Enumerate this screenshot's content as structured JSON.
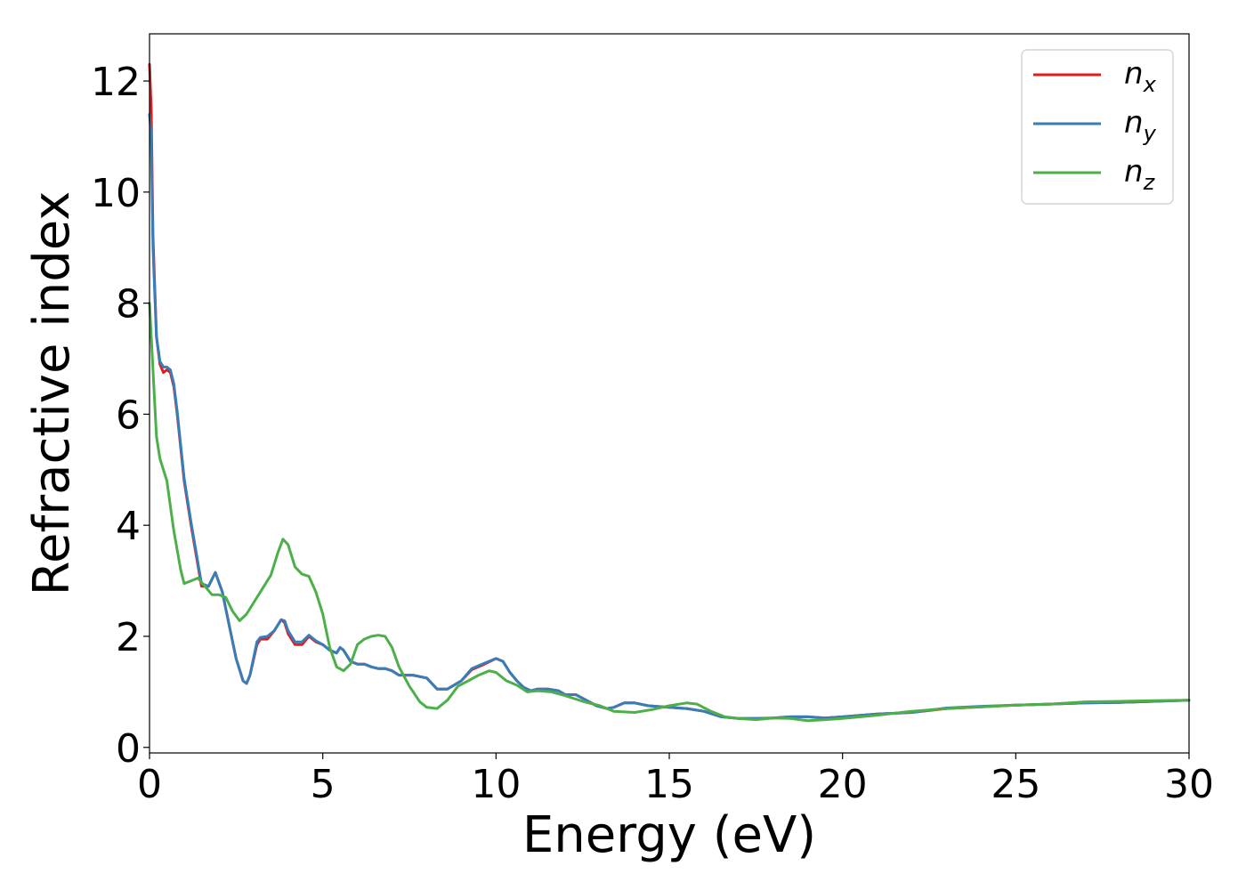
{
  "chart_data": {
    "type": "line",
    "title": "",
    "xlabel": "Energy (eV)",
    "ylabel": "Refractive index",
    "xlim": [
      0,
      30
    ],
    "ylim": [
      -0.1,
      12.85
    ],
    "xticks": [
      0,
      5,
      10,
      15,
      20,
      25,
      30
    ],
    "yticks": [
      0,
      2,
      4,
      6,
      8,
      10,
      12
    ],
    "grid": false,
    "legend_position": "top-right",
    "series": [
      {
        "base": "n",
        "sub": "x",
        "color": "#e41a1c",
        "x": [
          0,
          0.05,
          0.1,
          0.2,
          0.3,
          0.4,
          0.5,
          0.6,
          0.7,
          0.8,
          1.0,
          1.2,
          1.5,
          1.7,
          1.9,
          2.1,
          2.3,
          2.5,
          2.7,
          2.8,
          2.9,
          3.1,
          3.2,
          3.4,
          3.6,
          3.8,
          3.9,
          4.0,
          4.2,
          4.4,
          4.6,
          4.8,
          5.0,
          5.2,
          5.4,
          5.5,
          5.6,
          5.8,
          6.0,
          6.2,
          6.4,
          6.6,
          6.8,
          7.0,
          7.2,
          7.6,
          8.0,
          8.3,
          8.6,
          9.0,
          9.3,
          9.6,
          10.0,
          10.2,
          10.4,
          10.6,
          10.8,
          11.0,
          11.2,
          11.5,
          11.8,
          12.0,
          12.3,
          12.6,
          12.9,
          13.2,
          13.4,
          13.7,
          14.0,
          14.4,
          15.0,
          15.5,
          16.0,
          16.5,
          17.0,
          17.5,
          18.0,
          18.5,
          19.0,
          19.5,
          20.0,
          21.0,
          22.0,
          23.0,
          24.0,
          25.0,
          26.0,
          27.0,
          28.0,
          29.0,
          30.0
        ],
        "y": [
          12.3,
          11.5,
          9.2,
          7.4,
          6.9,
          6.75,
          6.8,
          6.75,
          6.5,
          6.0,
          4.8,
          4.0,
          2.9,
          2.9,
          3.15,
          2.8,
          2.2,
          1.6,
          1.2,
          1.15,
          1.3,
          1.85,
          1.95,
          1.95,
          2.1,
          2.3,
          2.25,
          2.05,
          1.85,
          1.85,
          2.0,
          1.9,
          1.85,
          1.75,
          1.7,
          1.8,
          1.75,
          1.55,
          1.5,
          1.5,
          1.45,
          1.42,
          1.42,
          1.38,
          1.3,
          1.3,
          1.25,
          1.05,
          1.05,
          1.2,
          1.4,
          1.48,
          1.6,
          1.55,
          1.35,
          1.2,
          1.08,
          1.02,
          1.05,
          1.05,
          1.02,
          0.95,
          0.95,
          0.85,
          0.75,
          0.7,
          0.72,
          0.8,
          0.8,
          0.75,
          0.72,
          0.7,
          0.65,
          0.55,
          0.52,
          0.52,
          0.53,
          0.55,
          0.55,
          0.53,
          0.55,
          0.6,
          0.63,
          0.7,
          0.73,
          0.76,
          0.78,
          0.8,
          0.81,
          0.83,
          0.85
        ]
      },
      {
        "base": "n",
        "sub": "y",
        "color": "#377eb8",
        "x": [
          0,
          0.05,
          0.1,
          0.2,
          0.3,
          0.4,
          0.5,
          0.6,
          0.7,
          0.8,
          1.0,
          1.2,
          1.5,
          1.7,
          1.9,
          2.1,
          2.3,
          2.5,
          2.7,
          2.8,
          2.9,
          3.1,
          3.2,
          3.4,
          3.6,
          3.8,
          3.9,
          4.0,
          4.2,
          4.4,
          4.6,
          4.8,
          5.0,
          5.2,
          5.4,
          5.5,
          5.6,
          5.8,
          6.0,
          6.2,
          6.4,
          6.6,
          6.8,
          7.0,
          7.2,
          7.6,
          8.0,
          8.3,
          8.6,
          9.0,
          9.3,
          9.6,
          10.0,
          10.2,
          10.4,
          10.6,
          10.8,
          11.0,
          11.2,
          11.5,
          11.8,
          12.0,
          12.3,
          12.6,
          12.9,
          13.2,
          13.4,
          13.7,
          14.0,
          14.4,
          15.0,
          15.5,
          16.0,
          16.5,
          17.0,
          17.5,
          18.0,
          18.5,
          19.0,
          19.5,
          20.0,
          21.0,
          22.0,
          23.0,
          24.0,
          25.0,
          26.0,
          27.0,
          28.0,
          29.0,
          30.0
        ],
        "y": [
          11.4,
          11.0,
          9.0,
          7.4,
          6.95,
          6.85,
          6.85,
          6.8,
          6.55,
          6.05,
          4.85,
          4.05,
          2.95,
          2.9,
          3.15,
          2.8,
          2.2,
          1.6,
          1.2,
          1.15,
          1.3,
          1.9,
          1.98,
          2.0,
          2.1,
          2.3,
          2.28,
          2.1,
          1.9,
          1.9,
          2.02,
          1.92,
          1.85,
          1.75,
          1.7,
          1.8,
          1.75,
          1.55,
          1.5,
          1.5,
          1.45,
          1.42,
          1.42,
          1.38,
          1.3,
          1.3,
          1.25,
          1.05,
          1.05,
          1.2,
          1.42,
          1.5,
          1.6,
          1.55,
          1.35,
          1.2,
          1.08,
          1.02,
          1.05,
          1.05,
          1.02,
          0.95,
          0.95,
          0.85,
          0.75,
          0.7,
          0.72,
          0.8,
          0.8,
          0.75,
          0.72,
          0.7,
          0.65,
          0.55,
          0.52,
          0.52,
          0.53,
          0.55,
          0.55,
          0.53,
          0.55,
          0.6,
          0.63,
          0.71,
          0.74,
          0.76,
          0.78,
          0.8,
          0.81,
          0.83,
          0.85
        ]
      },
      {
        "base": "n",
        "sub": "z",
        "color": "#4daf4a",
        "x": [
          0,
          0.1,
          0.2,
          0.3,
          0.5,
          0.7,
          0.9,
          1.0,
          1.2,
          1.4,
          1.6,
          1.8,
          2.0,
          2.2,
          2.4,
          2.6,
          2.8,
          3.0,
          3.3,
          3.5,
          3.7,
          3.85,
          4.0,
          4.2,
          4.4,
          4.6,
          4.8,
          5.0,
          5.2,
          5.4,
          5.6,
          5.8,
          6.0,
          6.2,
          6.4,
          6.6,
          6.8,
          7.0,
          7.2,
          7.5,
          7.8,
          8.0,
          8.3,
          8.6,
          8.9,
          9.2,
          9.5,
          9.8,
          10.0,
          10.3,
          10.6,
          10.9,
          11.2,
          11.6,
          12.0,
          12.5,
          13.0,
          13.4,
          14.0,
          14.5,
          15.0,
          15.5,
          15.8,
          16.2,
          16.6,
          17.0,
          17.5,
          18.0,
          18.5,
          19.0,
          19.5,
          20.0,
          21.0,
          22.0,
          23.0,
          24.0,
          25.0,
          26.0,
          27.0,
          28.0,
          29.0,
          30.0
        ],
        "y": [
          8.0,
          6.8,
          5.6,
          5.2,
          4.8,
          3.9,
          3.2,
          2.95,
          3.0,
          3.05,
          2.9,
          2.75,
          2.75,
          2.7,
          2.45,
          2.28,
          2.4,
          2.6,
          2.9,
          3.1,
          3.5,
          3.75,
          3.65,
          3.25,
          3.12,
          3.08,
          2.8,
          2.4,
          1.8,
          1.45,
          1.38,
          1.5,
          1.85,
          1.95,
          2.0,
          2.02,
          2.0,
          1.8,
          1.45,
          1.1,
          0.82,
          0.72,
          0.7,
          0.85,
          1.1,
          1.2,
          1.3,
          1.38,
          1.35,
          1.2,
          1.12,
          1.0,
          1.02,
          1.0,
          0.93,
          0.83,
          0.75,
          0.65,
          0.63,
          0.68,
          0.75,
          0.8,
          0.78,
          0.65,
          0.55,
          0.52,
          0.5,
          0.53,
          0.52,
          0.48,
          0.5,
          0.52,
          0.58,
          0.65,
          0.7,
          0.73,
          0.76,
          0.78,
          0.82,
          0.83,
          0.84,
          0.85
        ]
      }
    ]
  }
}
